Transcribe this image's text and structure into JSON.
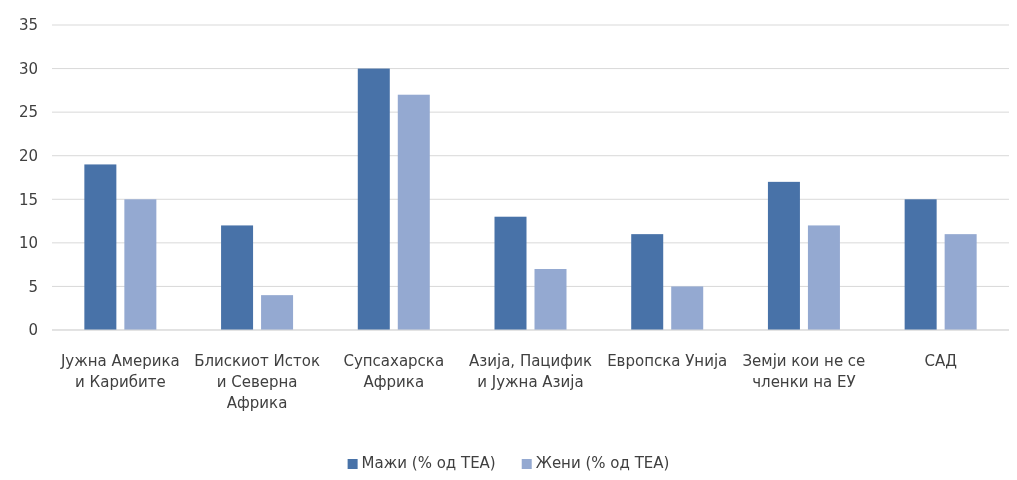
{
  "chart_data": {
    "type": "bar",
    "categories": [
      "Јужна Америка и Карибите",
      "Блискиот Исток и Северна Африка",
      "Супсахарска Африка",
      "Азија, Пацифик и Јужна Азија",
      "Европска Унија",
      "Земји кои не се членки на ЕУ",
      "САД"
    ],
    "series": [
      {
        "name": "Мажи (% од ТЕА)",
        "color": "#4872a8",
        "values": [
          19,
          12,
          30,
          13,
          11,
          17,
          15
        ]
      },
      {
        "name": "Жени (% од ТЕА)",
        "color": "#94a9d1",
        "values": [
          15,
          4,
          27,
          7,
          5,
          12,
          11
        ]
      }
    ],
    "ylim": [
      0,
      35
    ],
    "yticks": [
      0,
      5,
      10,
      15,
      20,
      25,
      30,
      35
    ],
    "grid": "y",
    "legend": "bottom"
  }
}
